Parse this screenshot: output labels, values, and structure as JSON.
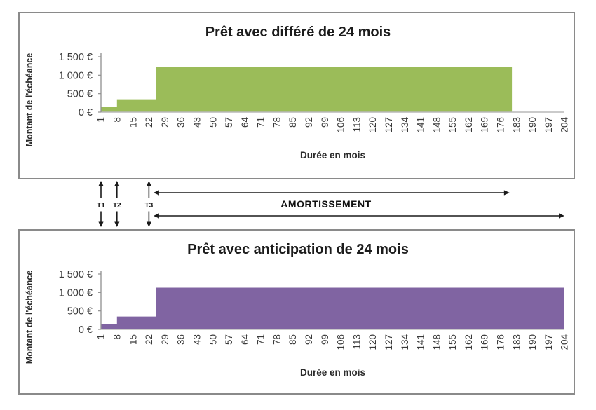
{
  "chart_data": [
    {
      "type": "area",
      "title": "Prêt avec différé de 24 mois",
      "ylabel": "Montant de l'échéance",
      "xlabel": "Durée en mois",
      "fill_color": "#9bbc59",
      "ylim": [
        0,
        1500
      ],
      "xlim": [
        1,
        204
      ],
      "grid": false,
      "legend": false,
      "ytick_values": [
        0,
        500,
        1000,
        1500
      ],
      "ytick_labels": [
        "0 €",
        "500 €",
        "1 000 €",
        "1 500 €"
      ],
      "xtick_labels": [
        1,
        8,
        15,
        22,
        29,
        36,
        43,
        50,
        57,
        64,
        71,
        78,
        85,
        92,
        99,
        106,
        113,
        120,
        127,
        134,
        141,
        148,
        155,
        162,
        169,
        176,
        183,
        190,
        197,
        204
      ],
      "segments": [
        {
          "from_month": 1,
          "to_month": 7,
          "value": 150
        },
        {
          "from_month": 8,
          "to_month": 24,
          "value": 350
        },
        {
          "from_month": 25,
          "to_month": 180,
          "value": 1220
        },
        {
          "from_month": 181,
          "to_month": 204,
          "value": 0
        }
      ]
    },
    {
      "type": "area",
      "title": "Prêt avec anticipation de 24 mois",
      "ylabel": "Montant de l'échéance",
      "xlabel": "Durée en mois",
      "fill_color": "#8064a2",
      "ylim": [
        0,
        1500
      ],
      "xlim": [
        1,
        204
      ],
      "grid": false,
      "legend": false,
      "ytick_values": [
        0,
        500,
        1000,
        1500
      ],
      "ytick_labels": [
        "0 €",
        "500 €",
        "1 000 €",
        "1 500 €"
      ],
      "xtick_labels": [
        1,
        8,
        15,
        22,
        29,
        36,
        43,
        50,
        57,
        64,
        71,
        78,
        85,
        92,
        99,
        106,
        113,
        120,
        127,
        134,
        141,
        148,
        155,
        162,
        169,
        176,
        183,
        190,
        197,
        204
      ],
      "segments": [
        {
          "from_month": 1,
          "to_month": 7,
          "value": 150
        },
        {
          "from_month": 8,
          "to_month": 24,
          "value": 350
        },
        {
          "from_month": 25,
          "to_month": 204,
          "value": 1130
        }
      ]
    }
  ],
  "annotations": {
    "timeline_markers": [
      {
        "label": "T1",
        "month": 1
      },
      {
        "label": "T2",
        "month": 8
      },
      {
        "label": "T3",
        "month": 22
      }
    ],
    "amortissement_label": "AMORTISSEMENT",
    "amortissement_arrows": [
      {
        "from_month": 24,
        "to_month": 180
      },
      {
        "from_month": 24,
        "to_month": 204
      }
    ],
    "arrow_color": "#1a1a1a"
  },
  "style_colors": {
    "panel_border": "#8a8a8a",
    "y_axis": "#8f8f8f",
    "x_axis": "#b8b8b8",
    "background": "#ffffff"
  }
}
